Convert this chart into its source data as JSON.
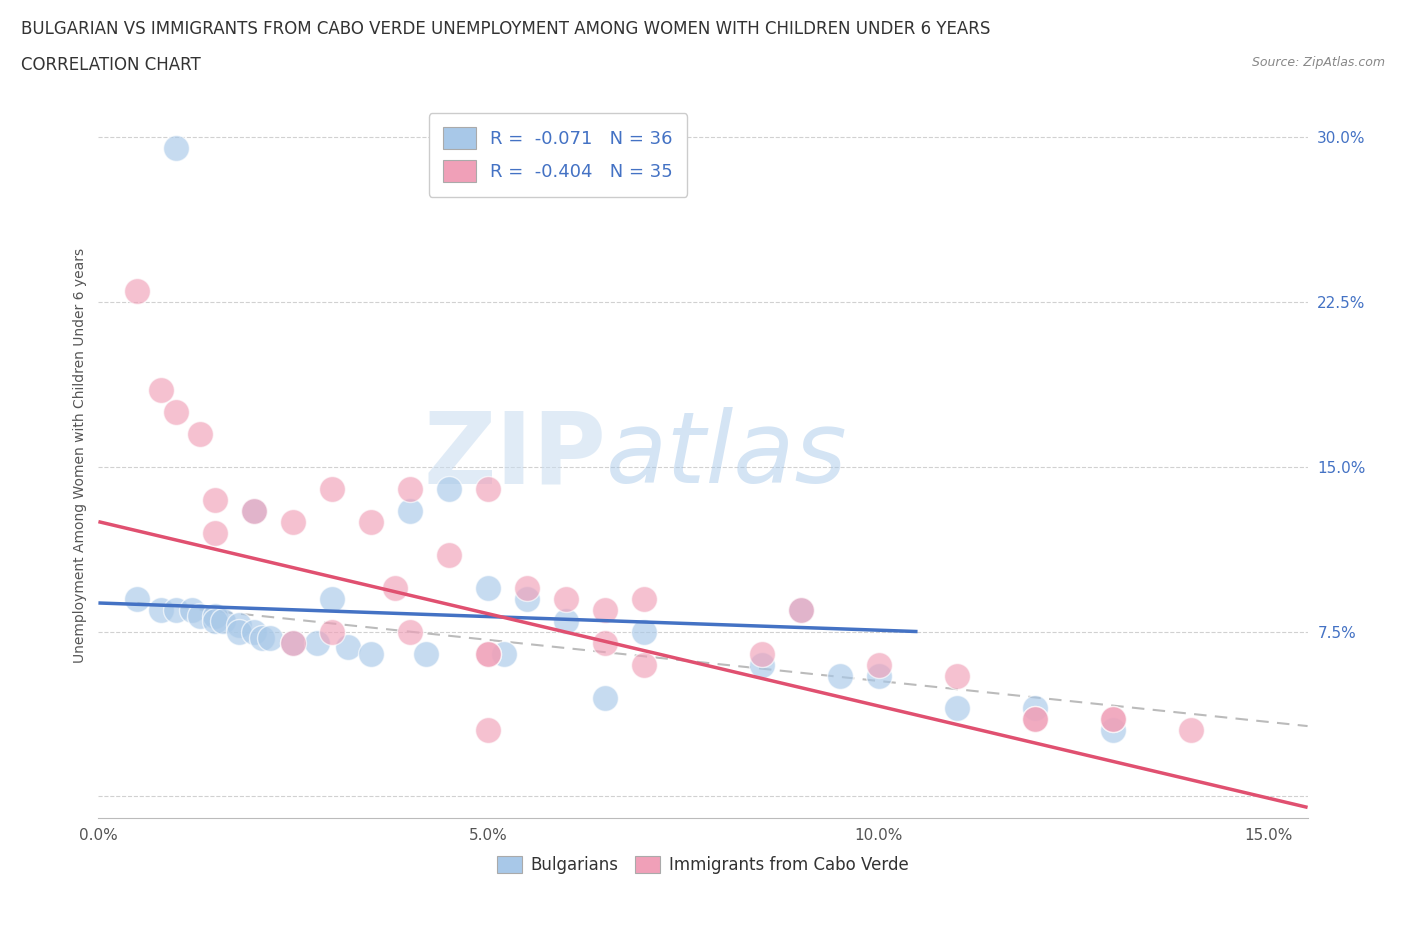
{
  "title_line1": "BULGARIAN VS IMMIGRANTS FROM CABO VERDE UNEMPLOYMENT AMONG WOMEN WITH CHILDREN UNDER 6 YEARS",
  "title_line2": "CORRELATION CHART",
  "source": "Source: ZipAtlas.com",
  "ylabel": "Unemployment Among Women with Children Under 6 years",
  "watermark_zip": "ZIP",
  "watermark_atlas": "atlas",
  "legend_label1": "Bulgarians",
  "legend_label2": "Immigrants from Cabo Verde",
  "r1": -0.071,
  "n1": 36,
  "r2": -0.404,
  "n2": 35,
  "color_blue": "#A8C8E8",
  "color_pink": "#F0A0B8",
  "color_blue_dark": "#4472C4",
  "color_pink_dark": "#E05070",
  "xlim": [
    0.0,
    0.155
  ],
  "ylim": [
    -0.01,
    0.32
  ],
  "xticks": [
    0.0,
    0.05,
    0.1,
    0.15
  ],
  "xtick_labels": [
    "0.0%",
    "5.0%",
    "10.0%",
    "15.0%"
  ],
  "yticks": [
    0.0,
    0.075,
    0.15,
    0.225,
    0.3
  ],
  "ytick_labels": [
    "",
    "7.5%",
    "15.0%",
    "22.5%",
    "30.0%"
  ],
  "blue_scatter_x": [
    0.01,
    0.005,
    0.008,
    0.01,
    0.012,
    0.013,
    0.015,
    0.015,
    0.016,
    0.018,
    0.018,
    0.02,
    0.021,
    0.022,
    0.025,
    0.028,
    0.03,
    0.032,
    0.035,
    0.04,
    0.042,
    0.045,
    0.05,
    0.052,
    0.055,
    0.06,
    0.065,
    0.07,
    0.085,
    0.09,
    0.095,
    0.1,
    0.11,
    0.12,
    0.13,
    0.02
  ],
  "blue_scatter_y": [
    0.295,
    0.09,
    0.085,
    0.085,
    0.085,
    0.082,
    0.082,
    0.08,
    0.08,
    0.078,
    0.075,
    0.075,
    0.072,
    0.072,
    0.07,
    0.07,
    0.09,
    0.068,
    0.065,
    0.13,
    0.065,
    0.14,
    0.095,
    0.065,
    0.09,
    0.08,
    0.045,
    0.075,
    0.06,
    0.085,
    0.055,
    0.055,
    0.04,
    0.04,
    0.03,
    0.13
  ],
  "pink_scatter_x": [
    0.005,
    0.008,
    0.01,
    0.013,
    0.015,
    0.015,
    0.02,
    0.025,
    0.03,
    0.035,
    0.038,
    0.04,
    0.045,
    0.05,
    0.055,
    0.06,
    0.065,
    0.07,
    0.025,
    0.03,
    0.04,
    0.05,
    0.065,
    0.085,
    0.09,
    0.1,
    0.11,
    0.12,
    0.13,
    0.05,
    0.07,
    0.12,
    0.13,
    0.14,
    0.05
  ],
  "pink_scatter_y": [
    0.23,
    0.185,
    0.175,
    0.165,
    0.135,
    0.12,
    0.13,
    0.125,
    0.14,
    0.125,
    0.095,
    0.14,
    0.11,
    0.14,
    0.095,
    0.09,
    0.085,
    0.09,
    0.07,
    0.075,
    0.075,
    0.065,
    0.07,
    0.065,
    0.085,
    0.06,
    0.055,
    0.035,
    0.035,
    0.065,
    0.06,
    0.035,
    0.035,
    0.03,
    0.03
  ],
  "blue_trend_x": [
    0.0,
    0.105
  ],
  "blue_trend_y": [
    0.088,
    0.075
  ],
  "pink_trend_x": [
    0.0,
    0.155
  ],
  "pink_trend_y": [
    0.125,
    -0.005
  ],
  "dashed_trend_x": [
    0.005,
    0.155
  ],
  "dashed_trend_y": [
    0.088,
    0.032
  ],
  "bg_color": "#FFFFFF",
  "grid_color": "#CCCCCC",
  "title_fontsize": 12,
  "axis_fontsize": 10,
  "tick_fontsize": 11,
  "legend_fontsize": 13
}
